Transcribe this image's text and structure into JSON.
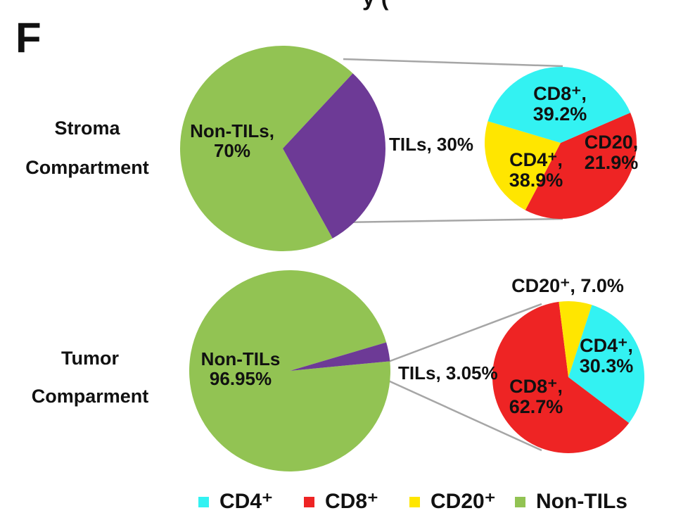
{
  "panel_letter": "F",
  "top_cut_text": "y (",
  "colors": {
    "CD4": "#33f2f2",
    "CD8": "#ee2424",
    "CD20": "#ffe600",
    "NonTILs": "#92c353",
    "TILs": "#6d3a96",
    "connector": "#a6a6a6"
  },
  "chart_data": [
    {
      "type": "pie",
      "row_label": [
        "Stroma",
        "Compartment"
      ],
      "slices": [
        {
          "label": "Non-TILs",
          "value": 70,
          "text": [
            "Non-TILs,",
            "70%"
          ],
          "color_key": "NonTILs"
        },
        {
          "label": "TILs",
          "value": 30,
          "text": [
            "TILs, 30%"
          ],
          "color_key": "TILs"
        }
      ]
    },
    {
      "type": "pie",
      "breakdown_of": "TILs",
      "slices": [
        {
          "label": "CD8",
          "value": 39.2,
          "text": [
            "CD8+,",
            "39.2%"
          ],
          "color_key": "CD8"
        },
        {
          "label": "CD20",
          "value": 21.9,
          "text": [
            "CD20,",
            "21.9%"
          ],
          "color_key": "CD20"
        },
        {
          "label": "CD4",
          "value": 38.9,
          "text": [
            "CD4+,",
            "38.9%"
          ],
          "color_key": "CD4"
        }
      ]
    },
    {
      "type": "pie",
      "row_label": [
        "Tumor",
        "Comparment"
      ],
      "slices": [
        {
          "label": "Non-TILs",
          "value": 96.95,
          "text": [
            "Non-TILs",
            "96.95%"
          ],
          "color_key": "NonTILs"
        },
        {
          "label": "TILs",
          "value": 3.05,
          "text": [
            "TILs, 3.05%"
          ],
          "color_key": "TILs"
        }
      ]
    },
    {
      "type": "pie",
      "breakdown_of": "TILs",
      "slices": [
        {
          "label": "CD4",
          "value": 30.3,
          "text": [
            "CD4+,",
            "30.3%"
          ],
          "color_key": "CD4"
        },
        {
          "label": "CD8",
          "value": 62.7,
          "text": [
            "CD8+,",
            "62.7%"
          ],
          "color_key": "CD8"
        },
        {
          "label": "CD20",
          "value": 7.0,
          "text": [
            "CD20+, 7.0%"
          ],
          "color_key": "CD20"
        }
      ]
    }
  ],
  "legend": [
    {
      "label": "CD4+",
      "color_key": "CD4"
    },
    {
      "label": "CD8+",
      "color_key": "CD8"
    },
    {
      "label": "CD20+",
      "color_key": "CD20"
    },
    {
      "label": "Non-TILs",
      "color_key": "NonTILs"
    }
  ]
}
